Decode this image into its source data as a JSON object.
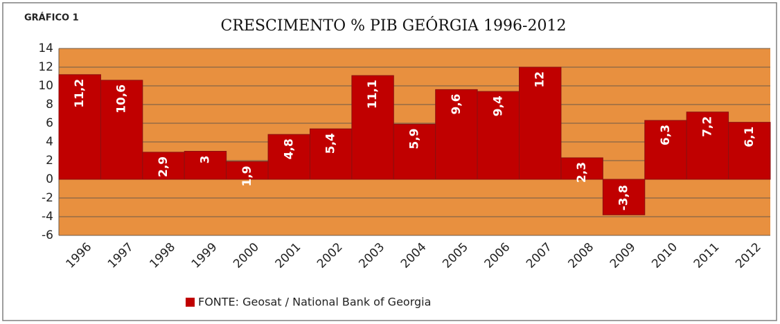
{
  "chart_data": {
    "type": "bar",
    "label": "GRÁFICO 1",
    "title": "CRESCIMENTO % PIB GEÓRGIA 1996-2012",
    "categories": [
      "1996",
      "1997",
      "1998",
      "1999",
      "2000",
      "2001",
      "2002",
      "2003",
      "2004",
      "2005",
      "2006",
      "2007",
      "2008",
      "2009",
      "2010",
      "2011",
      "2012"
    ],
    "series": [
      {
        "name": "FONTE: Geosat / National Bank of Georgia",
        "color": "#c00000",
        "values": [
          11.2,
          10.6,
          2.9,
          3,
          1.9,
          4.8,
          5.4,
          11.1,
          5.9,
          9.6,
          9.4,
          12,
          2.3,
          -3.8,
          6.3,
          7.2,
          6.1
        ],
        "value_labels": [
          "11,2",
          "10,6",
          "2,9",
          "3",
          "1,9",
          "4,8",
          "5,4",
          "11,1",
          "5,9",
          "9,6",
          "9,4",
          "12",
          "2,3",
          "-3,8",
          "6,3",
          "7,2",
          "6,1"
        ]
      }
    ],
    "ylim": [
      -6,
      14
    ],
    "yticks": [
      -6,
      -4,
      -2,
      0,
      2,
      4,
      6,
      8,
      10,
      12,
      14
    ],
    "grid": true,
    "legend": "bottom"
  }
}
